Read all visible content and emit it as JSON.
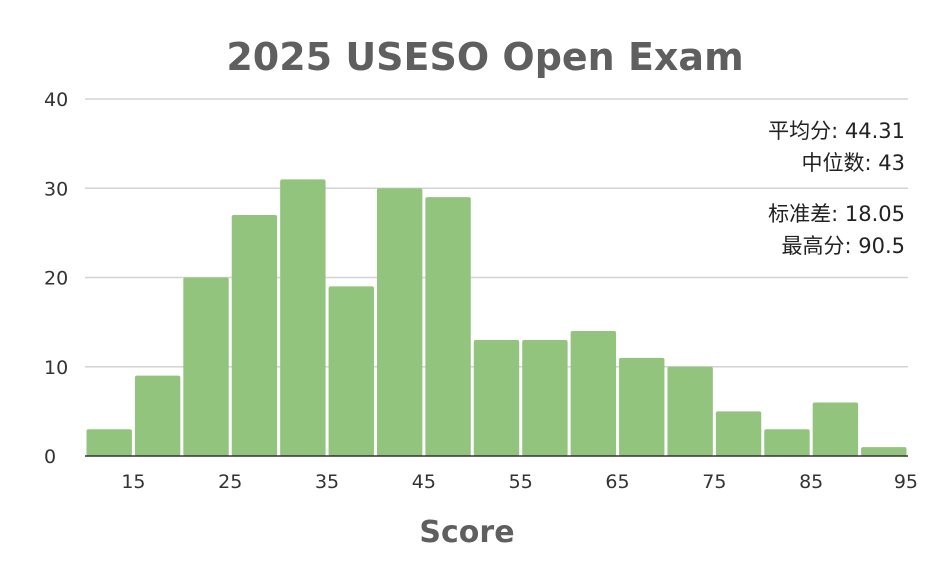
{
  "chart_data": {
    "type": "bar",
    "title": "2025 USESO Open Exam",
    "xlabel": "Score",
    "ylabel": "",
    "ylim": [
      0,
      40
    ],
    "xlim": [
      10,
      95
    ],
    "yticks": [
      "0",
      "10",
      "20",
      "30",
      "40"
    ],
    "xticks": [
      "15",
      "25",
      "35",
      "45",
      "55",
      "65",
      "75",
      "85",
      "95"
    ],
    "bin_width": 5,
    "bin_starts": [
      10,
      15,
      20,
      25,
      30,
      35,
      40,
      45,
      50,
      55,
      60,
      65,
      70,
      75,
      80,
      85,
      90
    ],
    "values": [
      3,
      9,
      20,
      27,
      31,
      19,
      30,
      29,
      13,
      13,
      14,
      11,
      10,
      5,
      3,
      6,
      1
    ],
    "bar_color": "#93c47d",
    "grid": true,
    "stats": {
      "mean": "平均分: 44.31",
      "median": "中位数: 43",
      "std": "标准差: 18.05",
      "max": "最高分: 90.5"
    }
  }
}
